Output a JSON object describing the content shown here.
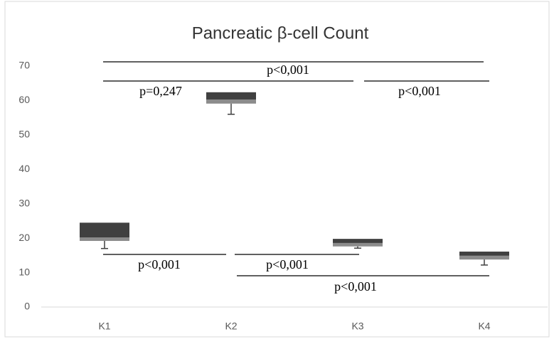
{
  "chart_data": {
    "type": "box",
    "title": "Pancreatic β-cell Count",
    "categories": [
      "K1",
      "K2",
      "K3",
      "K4"
    ],
    "min": [
      17,
      56,
      17.1,
      12.2
    ],
    "q1": [
      19.2,
      59.1,
      17.6,
      13.8
    ],
    "median": [
      20.2,
      60.3,
      18.6,
      14.9
    ],
    "q3": [
      24.5,
      62.4,
      19.8,
      16.1
    ],
    "colors": {
      "lower": "#8c8c8c",
      "upper": "#404040"
    },
    "ylim": [
      0,
      70
    ],
    "yticks": [
      0,
      10,
      20,
      30,
      40,
      50,
      60,
      70
    ],
    "annotations": [
      "p<0,001",
      "p=0,247",
      "p<0,001",
      "p<0,001",
      "p<0,001",
      "p<0,001"
    ]
  }
}
